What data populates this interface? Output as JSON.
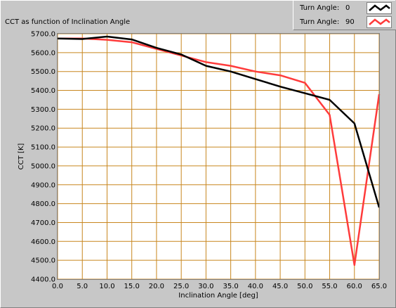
{
  "chart_data": {
    "type": "line",
    "title": "CCT as function of Inclination Angle",
    "xlabel": "Inclination Angle [deg]",
    "ylabel": "CCT [K]",
    "xlim": [
      0,
      65
    ],
    "ylim": [
      4400,
      5700
    ],
    "x_ticks": [
      "0.0",
      "5.0",
      "10.0",
      "15.0",
      "20.0",
      "25.0",
      "30.0",
      "35.0",
      "40.0",
      "45.0",
      "50.0",
      "55.0",
      "60.0",
      "65.0"
    ],
    "y_ticks": [
      "4400.0",
      "4500.0",
      "4600.0",
      "4700.0",
      "4800.0",
      "4900.0",
      "5000.0",
      "5100.0",
      "5200.0",
      "5300.0",
      "5400.0",
      "5500.0",
      "5600.0",
      "5700.0"
    ],
    "grid": true,
    "legend_position": "top-right",
    "x": [
      0,
      5,
      10,
      15,
      20,
      25,
      30,
      35,
      40,
      45,
      50,
      55,
      60,
      65
    ],
    "series": [
      {
        "name": "Turn Angle:",
        "value_label": "0",
        "color": "#000000",
        "values": [
          5675,
          5672,
          5685,
          5670,
          5625,
          5590,
          5530,
          5500,
          5460,
          5420,
          5385,
          5350,
          5225,
          4780
        ]
      },
      {
        "name": "Turn Angle:",
        "value_label": "90",
        "color": "#ff3b3b",
        "values": [
          5675,
          5675,
          5668,
          5655,
          5620,
          5585,
          5550,
          5530,
          5500,
          5480,
          5440,
          5270,
          4475,
          5380
        ]
      }
    ],
    "colors": {
      "plot_background": "#ffffff",
      "grid": "#c8861e",
      "panel": "#c7c7c7"
    }
  }
}
